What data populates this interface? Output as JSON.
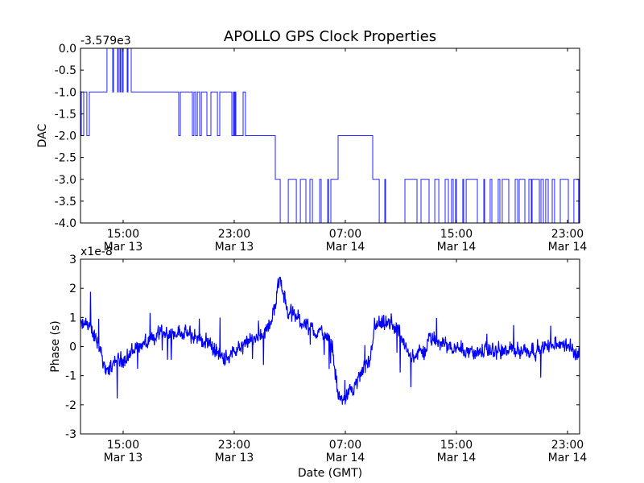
{
  "title": "APOLLO GPS Clock Properties",
  "colors": {
    "line": "#0000ff",
    "axes": "#000000",
    "background": "#ffffff"
  },
  "chart_data": [
    {
      "type": "line",
      "name": "dac",
      "title": "APOLLO GPS Clock Properties",
      "ylabel": "DAC",
      "offset_label": "-3.579e3",
      "x_unit": "hours since Mar 13 00:00 GMT",
      "xlim": [
        11.93,
        47.87
      ],
      "ylim": [
        -4.0,
        0.0
      ],
      "yticks": [
        0.0,
        -0.5,
        -1.0,
        -1.5,
        -2.0,
        -2.5,
        -3.0,
        -3.5,
        -4.0
      ],
      "ytick_labels": [
        "0.0",
        "-0.5",
        "-1.0",
        "-1.5",
        "-2.0",
        "-2.5",
        "-3.0",
        "-3.5",
        "-4.0"
      ],
      "xticks": [
        15,
        23,
        31,
        39,
        47
      ],
      "xtick_labels": [
        [
          "15:00",
          "Mar 13"
        ],
        [
          "23:00",
          "Mar 13"
        ],
        [
          "07:00",
          "Mar 14"
        ],
        [
          "15:00",
          "Mar 14"
        ],
        [
          "23:00",
          "Mar 14"
        ]
      ],
      "step": true,
      "steps": [
        [
          11.93,
          -1
        ],
        [
          11.99,
          -2
        ],
        [
          12.16,
          -1
        ],
        [
          12.39,
          -2
        ],
        [
          12.57,
          -1
        ],
        [
          13.84,
          0
        ],
        [
          14.25,
          -1
        ],
        [
          14.31,
          0
        ],
        [
          14.6,
          -1
        ],
        [
          14.65,
          0
        ],
        [
          14.77,
          -1
        ],
        [
          14.83,
          0
        ],
        [
          14.94,
          -1
        ],
        [
          15.0,
          0
        ],
        [
          15.29,
          -1
        ],
        [
          15.35,
          0
        ],
        [
          15.58,
          -1
        ],
        [
          19.0,
          -2
        ],
        [
          19.12,
          -1
        ],
        [
          19.99,
          -2
        ],
        [
          20.1,
          -1
        ],
        [
          20.22,
          -2
        ],
        [
          20.34,
          -1
        ],
        [
          20.51,
          -2
        ],
        [
          20.63,
          -1
        ],
        [
          21.03,
          -2
        ],
        [
          21.32,
          -1
        ],
        [
          21.79,
          -2
        ],
        [
          21.96,
          -1
        ],
        [
          22.83,
          -2
        ],
        [
          22.94,
          -1
        ],
        [
          23.0,
          -2
        ],
        [
          23.06,
          -1
        ],
        [
          23.12,
          -2
        ],
        [
          23.64,
          -1
        ],
        [
          23.81,
          -2
        ],
        [
          25.96,
          -3
        ],
        [
          26.31,
          -4
        ],
        [
          26.89,
          -3
        ],
        [
          27.47,
          -4
        ],
        [
          27.76,
          -3
        ],
        [
          28.16,
          -4
        ],
        [
          28.45,
          -3
        ],
        [
          28.63,
          -4
        ],
        [
          29.15,
          -3
        ],
        [
          29.26,
          -4
        ],
        [
          29.73,
          -3
        ],
        [
          29.79,
          -4
        ],
        [
          29.96,
          -3
        ],
        [
          30.48,
          -2
        ],
        [
          32.97,
          -3
        ],
        [
          33.44,
          -4
        ],
        [
          33.84,
          -3
        ],
        [
          33.9,
          -4
        ],
        [
          35.29,
          -3
        ],
        [
          36.16,
          -4
        ],
        [
          36.45,
          -3
        ],
        [
          37.03,
          -4
        ],
        [
          37.44,
          -3
        ],
        [
          37.73,
          -4
        ],
        [
          38.19,
          -3
        ],
        [
          38.42,
          -4
        ],
        [
          38.65,
          -3
        ],
        [
          38.77,
          -4
        ],
        [
          38.94,
          -3
        ],
        [
          39.0,
          -4
        ],
        [
          39.46,
          -3
        ],
        [
          39.52,
          -4
        ],
        [
          39.7,
          -3
        ],
        [
          40.51,
          -4
        ],
        [
          40.97,
          -3
        ],
        [
          41.03,
          -4
        ],
        [
          41.43,
          -3
        ],
        [
          41.55,
          -4
        ],
        [
          42.01,
          -3
        ],
        [
          42.13,
          -4
        ],
        [
          42.3,
          -3
        ],
        [
          42.77,
          -4
        ],
        [
          43.23,
          -3
        ],
        [
          43.41,
          -4
        ],
        [
          43.52,
          -3
        ],
        [
          43.93,
          -4
        ],
        [
          44.22,
          -3
        ],
        [
          44.39,
          -4
        ],
        [
          44.45,
          -3
        ],
        [
          44.97,
          -4
        ],
        [
          45.09,
          -3
        ],
        [
          45.26,
          -4
        ],
        [
          45.43,
          -3
        ],
        [
          45.61,
          -4
        ],
        [
          45.9,
          -3
        ],
        [
          46.07,
          -4
        ],
        [
          46.48,
          -3
        ],
        [
          47.06,
          -4
        ],
        [
          47.46,
          -3
        ],
        [
          47.8,
          -4
        ],
        [
          47.84,
          -3
        ],
        [
          47.87,
          -3
        ]
      ]
    },
    {
      "type": "line",
      "name": "phase",
      "ylabel": "Phase (s)",
      "xlabel": "Date (GMT)",
      "offset_label": "x1e-8",
      "x_unit": "hours since Mar 13 00:00 GMT",
      "xlim": [
        11.93,
        47.87
      ],
      "ylim": [
        -3,
        3
      ],
      "yticks": [
        3,
        2,
        1,
        0,
        -1,
        -2,
        -3
      ],
      "ytick_labels": [
        "3",
        "2",
        "1",
        "0",
        "-1",
        "-2",
        "-3"
      ],
      "xticks": [
        15,
        23,
        31,
        39,
        47
      ],
      "xtick_labels": [
        [
          "15:00",
          "Mar 13"
        ],
        [
          "23:00",
          "Mar 13"
        ],
        [
          "07:00",
          "Mar 14"
        ],
        [
          "15:00",
          "Mar 14"
        ],
        [
          "23:00",
          "Mar 14"
        ]
      ],
      "trend": [
        [
          11.93,
          0.7
        ],
        [
          12.51,
          0.8
        ],
        [
          13.26,
          0.0
        ],
        [
          13.84,
          -0.9
        ],
        [
          14.42,
          -0.5
        ],
        [
          15.23,
          -0.4
        ],
        [
          15.99,
          0.0
        ],
        [
          17.14,
          0.2
        ],
        [
          17.55,
          0.5
        ],
        [
          19.06,
          0.5
        ],
        [
          21.03,
          0.2
        ],
        [
          22.19,
          -0.4
        ],
        [
          23.35,
          -0.1
        ],
        [
          24.86,
          0.4
        ],
        [
          25.67,
          0.8
        ],
        [
          26.3,
          2.4
        ],
        [
          26.83,
          1.2
        ],
        [
          27.58,
          1.0
        ],
        [
          28.74,
          0.5
        ],
        [
          29.32,
          0.5
        ],
        [
          30.07,
          0.0
        ],
        [
          30.48,
          -1.7
        ],
        [
          30.94,
          -1.9
        ],
        [
          31.81,
          -1.2
        ],
        [
          32.8,
          -0.5
        ],
        [
          33.09,
          0.7
        ],
        [
          34.36,
          0.8
        ],
        [
          35.12,
          0.2
        ],
        [
          35.52,
          -0.3
        ],
        [
          36.68,
          -0.2
        ],
        [
          37.03,
          0.3
        ],
        [
          38.19,
          0.1
        ],
        [
          40.16,
          -0.2
        ],
        [
          44.8,
          -0.1
        ],
        [
          46.71,
          0.1
        ],
        [
          47.87,
          -0.3
        ]
      ],
      "noise_amplitude": 0.3,
      "samples": 1400
    }
  ]
}
